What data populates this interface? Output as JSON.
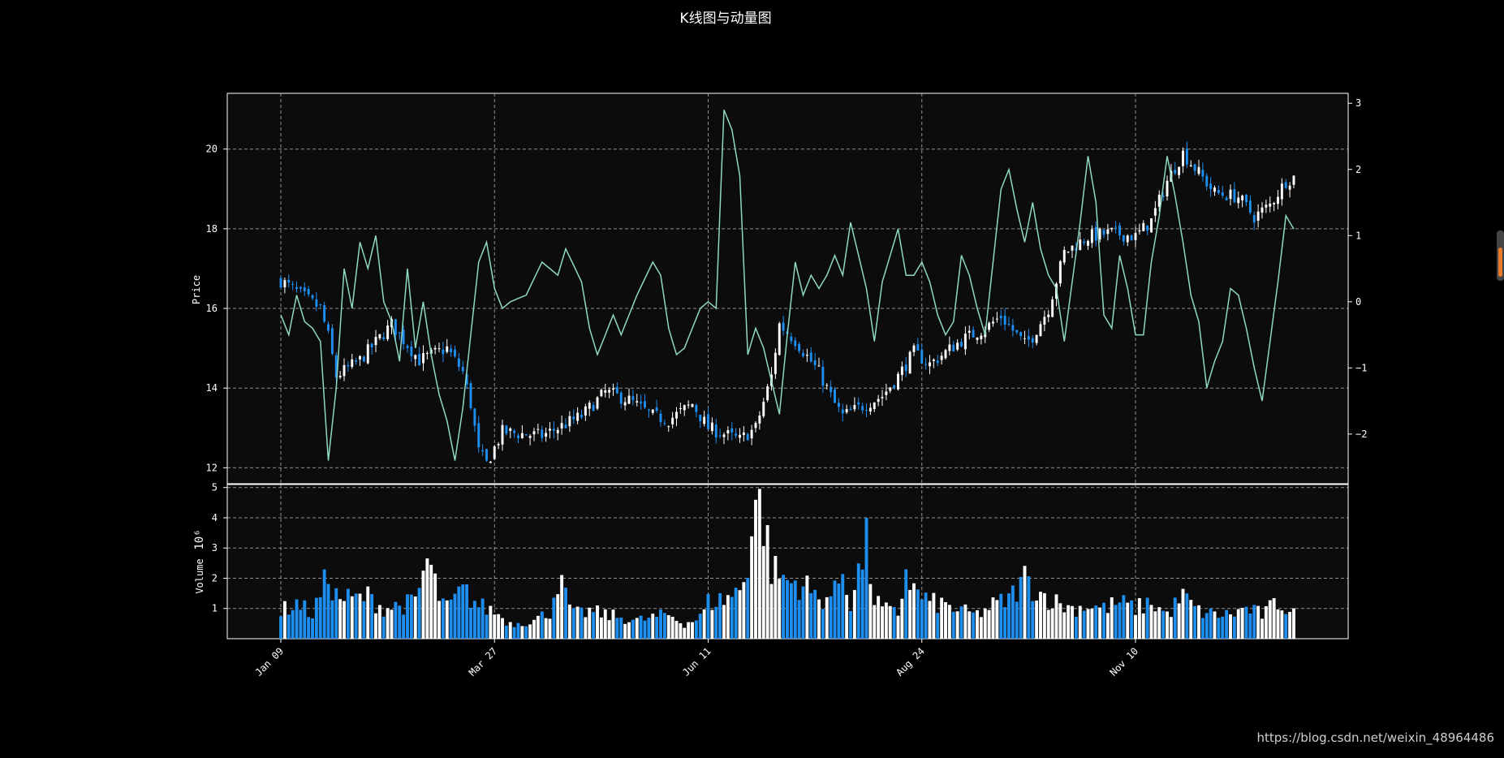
{
  "chart": {
    "title": "K线图与动量图",
    "watermark": "https://blog.csdn.net/weixin_48964486"
  },
  "colors": {
    "background": "#000000",
    "panel": "#0c0c0c",
    "up": "#ffffff",
    "down": "#1e8ef0",
    "momentum": "#8fd9c4",
    "grid": "#bfbfbf"
  },
  "chart_data": {
    "type": "candlestick",
    "grid": true,
    "x_axis": {
      "ticks": [
        "Jan 09",
        "Mar 27",
        "Jun 11",
        "Aug 24",
        "Nov 10"
      ],
      "tick_index": [
        0,
        54,
        108,
        162,
        216
      ],
      "n_days": 257
    },
    "price_panel": {
      "ylabel": "Price",
      "ylim": [
        11.6,
        21.4
      ],
      "yticks": [
        12,
        14,
        16,
        18,
        20
      ],
      "right_axis": {
        "ylim": [
          -2.75,
          3.15
        ],
        "yticks": [
          "−2",
          "−1",
          "0",
          "1",
          "2",
          "3"
        ],
        "ytick_values": [
          -2,
          -1,
          0,
          1,
          2,
          3
        ]
      },
      "close_anchors": [
        [
          0,
          16.7
        ],
        [
          10,
          16.0
        ],
        [
          12,
          15.3
        ],
        [
          14,
          14.3
        ],
        [
          20,
          14.7
        ],
        [
          28,
          15.6
        ],
        [
          35,
          14.7
        ],
        [
          42,
          15.0
        ],
        [
          46,
          14.4
        ],
        [
          48,
          13.6
        ],
        [
          50,
          12.4
        ],
        [
          52,
          12.1
        ],
        [
          56,
          12.9
        ],
        [
          66,
          12.8
        ],
        [
          70,
          13.0
        ],
        [
          76,
          13.3
        ],
        [
          82,
          13.9
        ],
        [
          88,
          13.7
        ],
        [
          94,
          13.3
        ],
        [
          98,
          13.2
        ],
        [
          104,
          13.6
        ],
        [
          108,
          13.0
        ],
        [
          116,
          12.7
        ],
        [
          120,
          13.0
        ],
        [
          124,
          14.3
        ],
        [
          126,
          15.6
        ],
        [
          130,
          15.2
        ],
        [
          136,
          14.4
        ],
        [
          140,
          13.6
        ],
        [
          142,
          13.3
        ],
        [
          146,
          13.5
        ],
        [
          152,
          13.8
        ],
        [
          156,
          14.3
        ],
        [
          160,
          14.9
        ],
        [
          164,
          14.6
        ],
        [
          168,
          14.9
        ],
        [
          172,
          15.2
        ],
        [
          178,
          15.5
        ],
        [
          182,
          15.8
        ],
        [
          188,
          15.1
        ],
        [
          190,
          15.3
        ],
        [
          194,
          16.0
        ],
        [
          198,
          17.4
        ],
        [
          204,
          17.8
        ],
        [
          210,
          17.9
        ],
        [
          216,
          17.8
        ],
        [
          220,
          18.2
        ],
        [
          224,
          19.2
        ],
        [
          228,
          19.9
        ],
        [
          232,
          19.4
        ],
        [
          236,
          18.9
        ],
        [
          242,
          18.8
        ],
        [
          246,
          18.3
        ],
        [
          250,
          18.6
        ],
        [
          254,
          19.2
        ],
        [
          256,
          19.3
        ]
      ]
    },
    "momentum": {
      "anchors": [
        [
          0,
          -0.2
        ],
        [
          2,
          -0.5
        ],
        [
          4,
          0.1
        ],
        [
          6,
          -0.3
        ],
        [
          8,
          -0.4
        ],
        [
          10,
          -0.6
        ],
        [
          12,
          -2.4
        ],
        [
          14,
          -1.3
        ],
        [
          16,
          0.5
        ],
        [
          18,
          -0.1
        ],
        [
          20,
          0.9
        ],
        [
          22,
          0.5
        ],
        [
          24,
          1.0
        ],
        [
          26,
          0.0
        ],
        [
          28,
          -0.3
        ],
        [
          30,
          -0.9
        ],
        [
          32,
          0.5
        ],
        [
          34,
          -0.7
        ],
        [
          36,
          0.0
        ],
        [
          38,
          -0.8
        ],
        [
          40,
          -1.4
        ],
        [
          42,
          -1.8
        ],
        [
          44,
          -2.4
        ],
        [
          46,
          -1.6
        ],
        [
          48,
          -0.5
        ],
        [
          50,
          0.6
        ],
        [
          52,
          0.9
        ],
        [
          54,
          0.2
        ],
        [
          56,
          -0.1
        ],
        [
          58,
          0.0
        ],
        [
          62,
          0.1
        ],
        [
          66,
          0.6
        ],
        [
          70,
          0.4
        ],
        [
          72,
          0.8
        ],
        [
          76,
          0.3
        ],
        [
          78,
          -0.4
        ],
        [
          80,
          -0.8
        ],
        [
          84,
          -0.2
        ],
        [
          86,
          -0.5
        ],
        [
          88,
          -0.2
        ],
        [
          90,
          0.1
        ],
        [
          94,
          0.6
        ],
        [
          96,
          0.4
        ],
        [
          98,
          -0.4
        ],
        [
          100,
          -0.8
        ],
        [
          102,
          -0.7
        ],
        [
          104,
          -0.4
        ],
        [
          106,
          -0.1
        ],
        [
          108,
          0.0
        ],
        [
          110,
          -0.1
        ],
        [
          112,
          2.9
        ],
        [
          114,
          2.6
        ],
        [
          116,
          1.9
        ],
        [
          118,
          -0.8
        ],
        [
          120,
          -0.4
        ],
        [
          122,
          -0.7
        ],
        [
          124,
          -1.2
        ],
        [
          126,
          -1.7
        ],
        [
          128,
          -0.5
        ],
        [
          130,
          0.6
        ],
        [
          132,
          0.1
        ],
        [
          134,
          0.4
        ],
        [
          136,
          0.2
        ],
        [
          138,
          0.4
        ],
        [
          140,
          0.7
        ],
        [
          142,
          0.4
        ],
        [
          144,
          1.2
        ],
        [
          146,
          0.7
        ],
        [
          148,
          0.2
        ],
        [
          150,
          -0.6
        ],
        [
          152,
          0.3
        ],
        [
          154,
          0.7
        ],
        [
          156,
          1.1
        ],
        [
          158,
          0.4
        ],
        [
          160,
          0.4
        ],
        [
          162,
          0.6
        ],
        [
          164,
          0.3
        ],
        [
          166,
          -0.2
        ],
        [
          168,
          -0.5
        ],
        [
          170,
          -0.3
        ],
        [
          172,
          0.7
        ],
        [
          174,
          0.4
        ],
        [
          176,
          -0.1
        ],
        [
          178,
          -0.5
        ],
        [
          180,
          0.6
        ],
        [
          182,
          1.7
        ],
        [
          184,
          2.0
        ],
        [
          186,
          1.4
        ],
        [
          188,
          0.9
        ],
        [
          190,
          1.5
        ],
        [
          192,
          0.8
        ],
        [
          194,
          0.4
        ],
        [
          196,
          0.2
        ],
        [
          198,
          -0.6
        ],
        [
          202,
          1.2
        ],
        [
          204,
          2.2
        ],
        [
          206,
          1.5
        ],
        [
          208,
          -0.2
        ],
        [
          210,
          -0.4
        ],
        [
          212,
          0.7
        ],
        [
          214,
          0.2
        ],
        [
          216,
          -0.5
        ],
        [
          218,
          -0.5
        ],
        [
          220,
          0.6
        ],
        [
          222,
          1.3
        ],
        [
          224,
          2.2
        ],
        [
          226,
          1.6
        ],
        [
          228,
          0.9
        ],
        [
          230,
          0.1
        ],
        [
          232,
          -0.3
        ],
        [
          234,
          -1.3
        ],
        [
          236,
          -0.9
        ],
        [
          238,
          -0.6
        ],
        [
          240,
          0.2
        ],
        [
          242,
          0.1
        ],
        [
          244,
          -0.4
        ],
        [
          246,
          -1.0
        ],
        [
          248,
          -1.5
        ],
        [
          250,
          -0.6
        ],
        [
          252,
          0.3
        ],
        [
          254,
          1.3
        ],
        [
          256,
          1.1
        ]
      ]
    },
    "volume_panel": {
      "ylabel": "Volume",
      "unit_label": "10⁶",
      "ylim": [
        0,
        5.1
      ],
      "yticks": [
        1,
        2,
        3,
        4,
        5
      ],
      "anchors": [
        [
          0,
          0.9
        ],
        [
          4,
          1.2
        ],
        [
          8,
          0.8
        ],
        [
          12,
          2.1
        ],
        [
          14,
          1.4
        ],
        [
          18,
          1.3
        ],
        [
          22,
          1.4
        ],
        [
          26,
          1.0
        ],
        [
          30,
          1.1
        ],
        [
          34,
          1.2
        ],
        [
          37,
          2.6
        ],
        [
          40,
          1.4
        ],
        [
          42,
          1.0
        ],
        [
          46,
          1.6
        ],
        [
          50,
          1.1
        ],
        [
          54,
          0.9
        ],
        [
          58,
          0.5
        ],
        [
          64,
          0.6
        ],
        [
          68,
          0.9
        ],
        [
          70,
          2.0
        ],
        [
          74,
          0.8
        ],
        [
          78,
          0.9
        ],
        [
          82,
          0.8
        ],
        [
          86,
          0.7
        ],
        [
          90,
          0.6
        ],
        [
          94,
          0.7
        ],
        [
          98,
          0.8
        ],
        [
          102,
          0.5
        ],
        [
          106,
          0.7
        ],
        [
          108,
          1.2
        ],
        [
          112,
          1.3
        ],
        [
          116,
          1.6
        ],
        [
          118,
          2.6
        ],
        [
          120,
          4.6
        ],
        [
          122,
          4.0
        ],
        [
          124,
          2.3
        ],
        [
          128,
          1.9
        ],
        [
          132,
          1.8
        ],
        [
          136,
          1.3
        ],
        [
          140,
          1.5
        ],
        [
          142,
          2.3
        ],
        [
          144,
          1.2
        ],
        [
          148,
          3.1
        ],
        [
          150,
          1.3
        ],
        [
          152,
          1.0
        ],
        [
          156,
          0.8
        ],
        [
          158,
          2.3
        ],
        [
          160,
          1.6
        ],
        [
          164,
          1.2
        ],
        [
          168,
          1.1
        ],
        [
          172,
          0.9
        ],
        [
          176,
          0.8
        ],
        [
          180,
          1.1
        ],
        [
          184,
          1.3
        ],
        [
          188,
          2.0
        ],
        [
          192,
          1.5
        ],
        [
          196,
          1.2
        ],
        [
          200,
          1.0
        ],
        [
          204,
          1.1
        ],
        [
          208,
          1.0
        ],
        [
          212,
          1.2
        ],
        [
          216,
          1.0
        ],
        [
          220,
          1.2
        ],
        [
          224,
          0.8
        ],
        [
          228,
          1.4
        ],
        [
          232,
          0.9
        ],
        [
          236,
          0.8
        ],
        [
          240,
          0.8
        ],
        [
          244,
          1.0
        ],
        [
          248,
          0.8
        ],
        [
          252,
          1.2
        ],
        [
          256,
          0.9
        ]
      ]
    }
  }
}
